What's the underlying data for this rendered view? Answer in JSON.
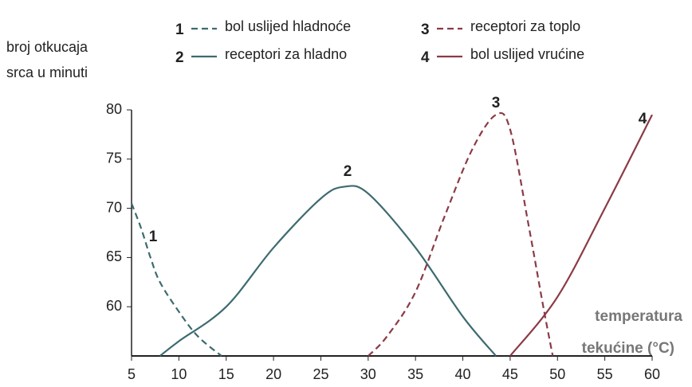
{
  "chart_data": {
    "type": "line",
    "ylabel": [
      "broj otkucaja",
      "srca u minuti"
    ],
    "xlabel": [
      "temperatura",
      "tekućine (°C)"
    ],
    "xlim": [
      5,
      60
    ],
    "xticks": [
      5,
      10,
      15,
      20,
      25,
      30,
      35,
      40,
      45,
      50,
      55,
      60
    ],
    "ylim": [
      55,
      80
    ],
    "yticks": [
      60,
      65,
      70,
      75,
      80
    ],
    "series": [
      {
        "label": "1",
        "name": "bol uslijed hladnoće",
        "color": "#3d6b70",
        "dashed": true,
        "x": [
          5,
          6,
          7,
          8,
          10,
          12,
          14.5
        ],
        "values": [
          70.5,
          68,
          65,
          62.5,
          59.5,
          57,
          55
        ]
      },
      {
        "label": "2",
        "name": "receptori za hladno",
        "color": "#3d6b70",
        "dashed": false,
        "x": [
          8,
          10,
          15,
          20,
          25,
          27.5,
          30,
          35,
          40,
          43.5
        ],
        "values": [
          55,
          56.5,
          60,
          66,
          71,
          72.2,
          71.5,
          66,
          59,
          55
        ]
      },
      {
        "label": "3",
        "name": "receptori za toplo",
        "color": "#8b3a46",
        "dashed": true,
        "x": [
          30,
          32,
          35,
          38,
          41,
          43.5,
          45,
          47,
          48.5,
          49.5
        ],
        "values": [
          55,
          57,
          61.5,
          69,
          76,
          79.5,
          78,
          68,
          60,
          55
        ]
      },
      {
        "label": "4",
        "name": "bol uslijed vrućine",
        "color": "#8b3a46",
        "dashed": false,
        "x": [
          45,
          50,
          55,
          60
        ],
        "values": [
          55,
          61,
          70,
          79.5
        ]
      }
    ]
  }
}
